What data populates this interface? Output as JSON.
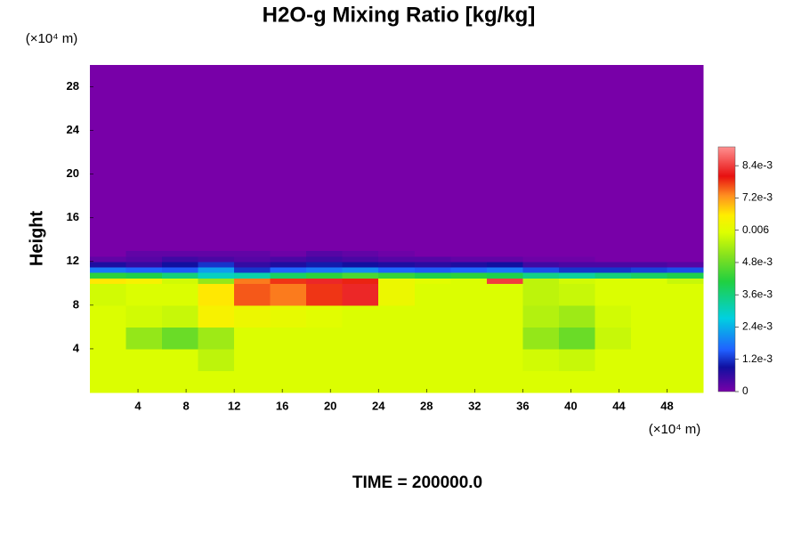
{
  "chart_data": {
    "type": "heatmap",
    "title": "H2O-g Mixing Ratio [kg/kg]",
    "ylabel": "Height",
    "xunit": "(×10⁴ m)",
    "yunit": "(×10⁴ m)",
    "footer": "TIME = 200000.0",
    "xlim": [
      0,
      51
    ],
    "ylim": [
      0,
      30
    ],
    "xticks": [
      4,
      8,
      12,
      16,
      20,
      24,
      28,
      32,
      36,
      40,
      44,
      48
    ],
    "yticks": [
      4,
      8,
      12,
      16,
      20,
      24,
      28
    ],
    "xedges": [
      0,
      3,
      6,
      9,
      12,
      15,
      18,
      21,
      24,
      27,
      30,
      33,
      36,
      39,
      42,
      45,
      48,
      51
    ],
    "yedges": [
      0,
      2,
      4,
      6,
      8,
      10,
      10.5,
      11,
      11.5,
      12,
      12.5,
      13,
      30
    ],
    "z": [
      [
        0.0059,
        0.0059,
        0.0059,
        0.0059,
        0.0059,
        0.0059,
        0.0059,
        0.0059,
        0.0059,
        0.0059,
        0.0059,
        0.0059,
        0.0059,
        0.0059,
        0.0059,
        0.0059,
        0.0059
      ],
      [
        0.0059,
        0.0059,
        0.0059,
        0.0056,
        0.0059,
        0.0059,
        0.0059,
        0.0059,
        0.0059,
        0.0059,
        0.0059,
        0.0059,
        0.0058,
        0.0057,
        0.0059,
        0.0059,
        0.0059
      ],
      [
        0.0059,
        0.0052,
        0.0048,
        0.0053,
        0.0059,
        0.0059,
        0.0059,
        0.0059,
        0.0059,
        0.0059,
        0.0059,
        0.0059,
        0.0052,
        0.0048,
        0.0057,
        0.0059,
        0.0059
      ],
      [
        0.0059,
        0.0058,
        0.0057,
        0.0064,
        0.0062,
        0.0061,
        0.006,
        0.0059,
        0.0059,
        0.0059,
        0.0059,
        0.0059,
        0.0055,
        0.0053,
        0.0058,
        0.0059,
        0.0059
      ],
      [
        0.0058,
        0.0059,
        0.0059,
        0.0066,
        0.0076,
        0.0074,
        0.0078,
        0.0082,
        0.0062,
        0.0059,
        0.0059,
        0.0059,
        0.0056,
        0.0057,
        0.0059,
        0.0059,
        0.0059
      ],
      [
        0.0066,
        0.0064,
        0.0058,
        0.0052,
        0.0074,
        0.0078,
        0.0082,
        0.0079,
        0.0062,
        0.006,
        0.0059,
        0.0084,
        0.0056,
        0.0058,
        0.0059,
        0.0059,
        0.0057
      ],
      [
        0.0042,
        0.004,
        0.0036,
        0.003,
        0.0032,
        0.0038,
        0.0042,
        0.0045,
        0.0043,
        0.004,
        0.0042,
        0.004,
        0.0035,
        0.0033,
        0.0036,
        0.0038,
        0.004
      ],
      [
        0.0018,
        0.0016,
        0.0015,
        0.0022,
        0.0012,
        0.0016,
        0.0018,
        0.002,
        0.0016,
        0.0015,
        0.0016,
        0.0018,
        0.0014,
        0.0012,
        0.0012,
        0.0013,
        0.0014
      ],
      [
        0.0008,
        0.0006,
        0.0009,
        0.0012,
        0.0006,
        0.0008,
        0.001,
        0.0009,
        0.0008,
        0.0007,
        0.0008,
        0.0009,
        0.0005,
        0.0004,
        0.0004,
        0.0004,
        0.0003
      ],
      [
        0.0002,
        0.0003,
        0.0005,
        0.0004,
        0.0003,
        0.0004,
        0.0005,
        0.0004,
        0.0003,
        0.0003,
        0.0002,
        0.0002,
        0.0001,
        0.0001,
        0,
        0,
        0
      ],
      [
        0,
        0.0002,
        0.0002,
        0.0002,
        0.0002,
        0.0001,
        0.0003,
        0.0002,
        0.0001,
        0,
        0,
        0,
        0,
        0,
        0,
        0,
        0
      ],
      [
        0,
        0,
        0,
        0,
        0,
        0,
        0,
        0,
        0,
        0,
        0,
        0,
        0,
        0,
        0,
        0,
        0
      ]
    ],
    "clim": [
      0,
      0.0091
    ],
    "cticks": [
      0,
      {
        "value": 0.0012,
        "label": "1.2e-3"
      },
      {
        "value": 0.0024,
        "label": "2.4e-3"
      },
      {
        "value": 0.0036,
        "label": "3.6e-3"
      },
      {
        "value": 0.0048,
        "label": "4.8e-3"
      },
      0.006,
      {
        "value": 0.0072,
        "label": "7.2e-3"
      },
      {
        "value": 0.0084,
        "label": "8.4e-3"
      }
    ],
    "colorscale": [
      [
        0,
        "#7800a8"
      ],
      [
        0.1,
        "#1010a0"
      ],
      [
        0.17,
        "#2060ff"
      ],
      [
        0.3,
        "#00d0e0"
      ],
      [
        0.45,
        "#20d040"
      ],
      [
        0.55,
        "#80e020"
      ],
      [
        0.65,
        "#ddff00"
      ],
      [
        0.72,
        "#ffee00"
      ],
      [
        0.8,
        "#ff9020"
      ],
      [
        0.88,
        "#e81010"
      ],
      [
        1,
        "#ff9090"
      ]
    ]
  }
}
